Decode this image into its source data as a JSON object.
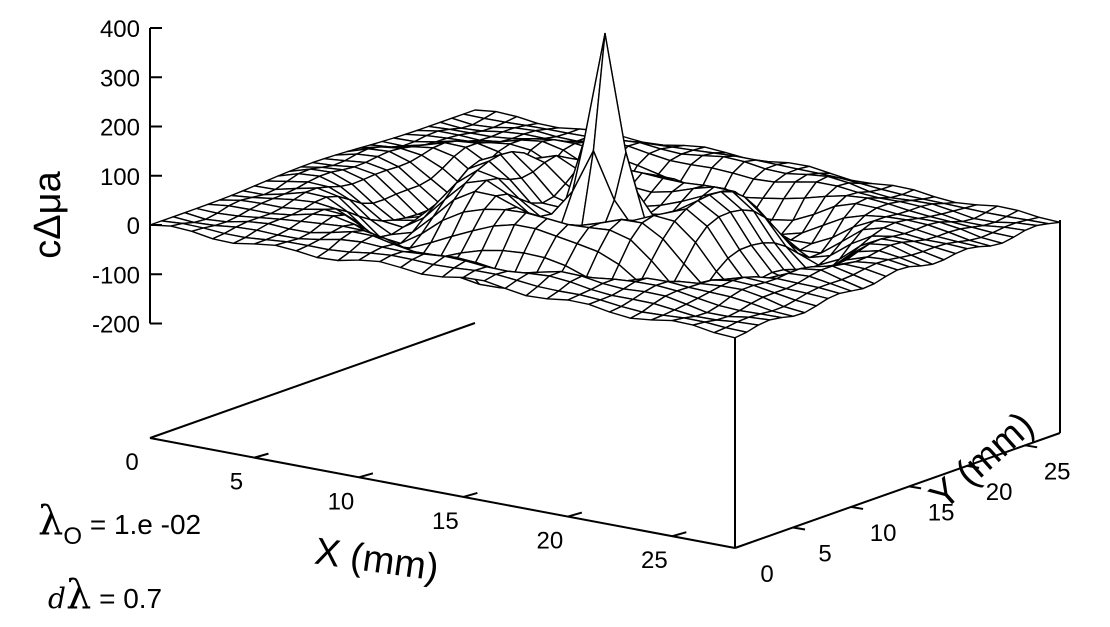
{
  "chart_data": {
    "type": "surface",
    "zlabel": "cΔμa",
    "xlabel": "X (mm)",
    "ylabel": "Y (mm)",
    "zlim": [
      -200,
      400
    ],
    "z_ticks": [
      "400",
      "300",
      "200",
      "100",
      "0",
      "-100",
      "-200"
    ],
    "x_ticks": [
      "0",
      "5",
      "10",
      "15",
      "20",
      "25"
    ],
    "y_ticks": [
      "0",
      "5",
      "10",
      "15",
      "20",
      "25"
    ],
    "xlim": [
      0,
      28
    ],
    "ylim": [
      0,
      28
    ],
    "grid_n": 29,
    "peak": {
      "x": 14,
      "y": 14,
      "z": 380
    },
    "baseline_z": 0
  },
  "params": {
    "lambda_symbol": "λ",
    "lambda_sub": "O",
    "lambda_text": "= 1.e -02",
    "d_symbol": "d",
    "dlambda_symbol": "λ",
    "dlambda_text": "= 0.7"
  }
}
